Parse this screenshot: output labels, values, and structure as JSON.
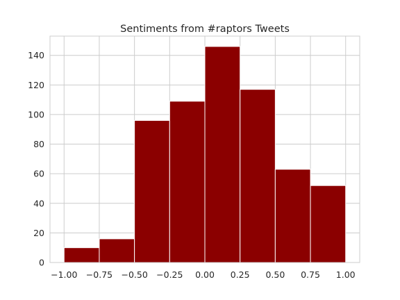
{
  "chart_data": {
    "type": "bar",
    "title": "Sentiments from #raptors Tweets",
    "xlabel": "",
    "ylabel": "",
    "bin_edges": [
      -1.0,
      -0.75,
      -0.5,
      -0.25,
      0.0,
      0.25,
      0.5,
      0.75,
      1.0
    ],
    "values": [
      10,
      16,
      96,
      109,
      146,
      117,
      63,
      52
    ],
    "xlim": [
      -1.1,
      1.1
    ],
    "ylim": [
      0,
      153
    ],
    "x_ticks": [
      -1.0,
      -0.75,
      -0.5,
      -0.25,
      0.0,
      0.25,
      0.5,
      0.75,
      1.0
    ],
    "x_tick_labels": [
      "−1.00",
      "−0.75",
      "−0.50",
      "−0.25",
      "0.00",
      "0.25",
      "0.50",
      "0.75",
      "1.00"
    ],
    "y_ticks": [
      0,
      20,
      40,
      60,
      80,
      100,
      120,
      140
    ],
    "y_tick_labels": [
      "0",
      "20",
      "40",
      "60",
      "80",
      "100",
      "120",
      "140"
    ],
    "grid": true,
    "bar_color": "#8b0000",
    "grid_color": "#cccccc"
  }
}
